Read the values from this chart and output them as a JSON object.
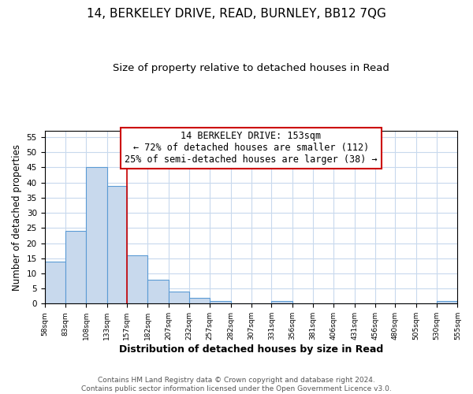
{
  "title": "14, BERKELEY DRIVE, READ, BURNLEY, BB12 7QG",
  "subtitle": "Size of property relative to detached houses in Read",
  "xlabel": "Distribution of detached houses by size in Read",
  "ylabel": "Number of detached properties",
  "bin_edges": [
    58,
    83,
    108,
    133,
    157,
    182,
    207,
    232,
    257,
    282,
    307,
    331,
    356,
    381,
    406,
    431,
    456,
    480,
    505,
    530,
    555
  ],
  "bin_counts": [
    14,
    24,
    45,
    39,
    16,
    8,
    4,
    2,
    1,
    0,
    0,
    1,
    0,
    0,
    0,
    0,
    0,
    0,
    0,
    1
  ],
  "bar_color": "#c8d9ed",
  "bar_edge_color": "#5b9bd5",
  "property_line_x": 157,
  "property_line_color": "#cc0000",
  "annotation_line1": "14 BERKELEY DRIVE: 153sqm",
  "annotation_line2": "← 72% of detached houses are smaller (112)",
  "annotation_line3": "25% of semi-detached houses are larger (38) →",
  "annotation_box_color": "#cc0000",
  "ylim": [
    0,
    57
  ],
  "yticks": [
    0,
    5,
    10,
    15,
    20,
    25,
    30,
    35,
    40,
    45,
    50,
    55
  ],
  "tick_labels": [
    "58sqm",
    "83sqm",
    "108sqm",
    "133sqm",
    "157sqm",
    "182sqm",
    "207sqm",
    "232sqm",
    "257sqm",
    "282sqm",
    "307sqm",
    "331sqm",
    "356sqm",
    "381sqm",
    "406sqm",
    "431sqm",
    "456sqm",
    "480sqm",
    "505sqm",
    "530sqm",
    "555sqm"
  ],
  "footer1": "Contains HM Land Registry data © Crown copyright and database right 2024.",
  "footer2": "Contains public sector information licensed under the Open Government Licence v3.0.",
  "background_color": "#ffffff",
  "grid_color": "#c8d9ed",
  "title_fontsize": 11,
  "subtitle_fontsize": 9.5,
  "xlabel_fontsize": 9,
  "ylabel_fontsize": 8.5,
  "footer_fontsize": 6.5
}
